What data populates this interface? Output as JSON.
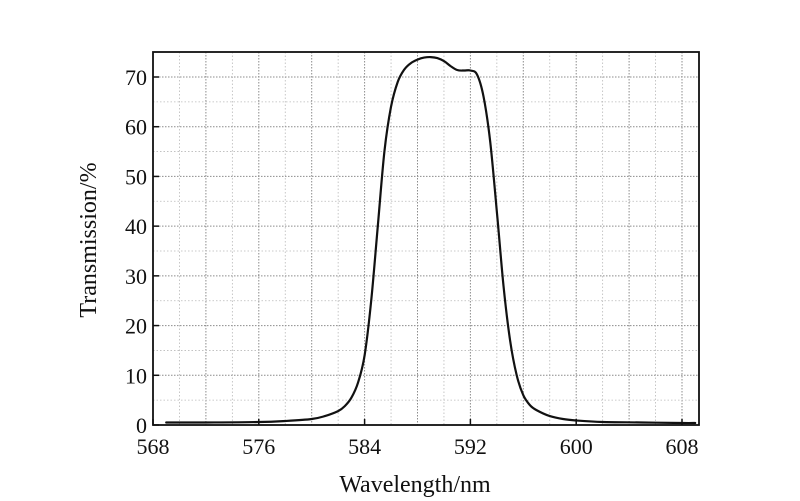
{
  "chart_data": {
    "type": "line",
    "xlabel": "Wavelength/nm",
    "ylabel": "Transmission/%",
    "xlim": [
      568,
      610
    ],
    "ylim": [
      0,
      75
    ],
    "x_ticks": [
      568,
      576,
      584,
      592,
      600,
      608
    ],
    "y_ticks": [
      0,
      10,
      20,
      30,
      40,
      50,
      60,
      70
    ],
    "x_tick_labels": [
      "568",
      "576",
      "584",
      "592",
      "600",
      "608"
    ],
    "y_tick_labels": [
      "0",
      "10",
      "20",
      "30",
      "40",
      "50",
      "60",
      "70"
    ],
    "grid": true,
    "legend": "none",
    "series": [
      {
        "color": "#111111",
        "x": [
          569.0,
          572.0,
          576.0,
          578.0,
          580.0,
          581.0,
          582.0,
          582.5,
          583.0,
          583.5,
          584.0,
          584.5,
          585.0,
          585.5,
          586.0,
          586.5,
          587.0,
          587.5,
          588.0,
          588.5,
          589.0,
          589.5,
          590.0,
          590.5,
          591.0,
          591.5,
          592.0,
          592.5,
          593.0,
          593.5,
          594.0,
          594.5,
          595.0,
          595.5,
          596.0,
          596.5,
          597.0,
          598.0,
          599.0,
          600.0,
          602.0,
          605.0,
          608.0,
          609.0
        ],
        "y": [
          0.5,
          0.5,
          0.6,
          0.8,
          1.2,
          1.8,
          2.8,
          3.8,
          5.5,
          8.5,
          14,
          25,
          40,
          55,
          64,
          69,
          71.5,
          72.8,
          73.5,
          73.9,
          74.0,
          73.8,
          73.2,
          72.2,
          71.4,
          71.3,
          71.3,
          70.5,
          66,
          57,
          43,
          28,
          17,
          10,
          6,
          4,
          3,
          1.8,
          1.2,
          0.9,
          0.6,
          0.5,
          0.4,
          0.4
        ]
      }
    ]
  }
}
